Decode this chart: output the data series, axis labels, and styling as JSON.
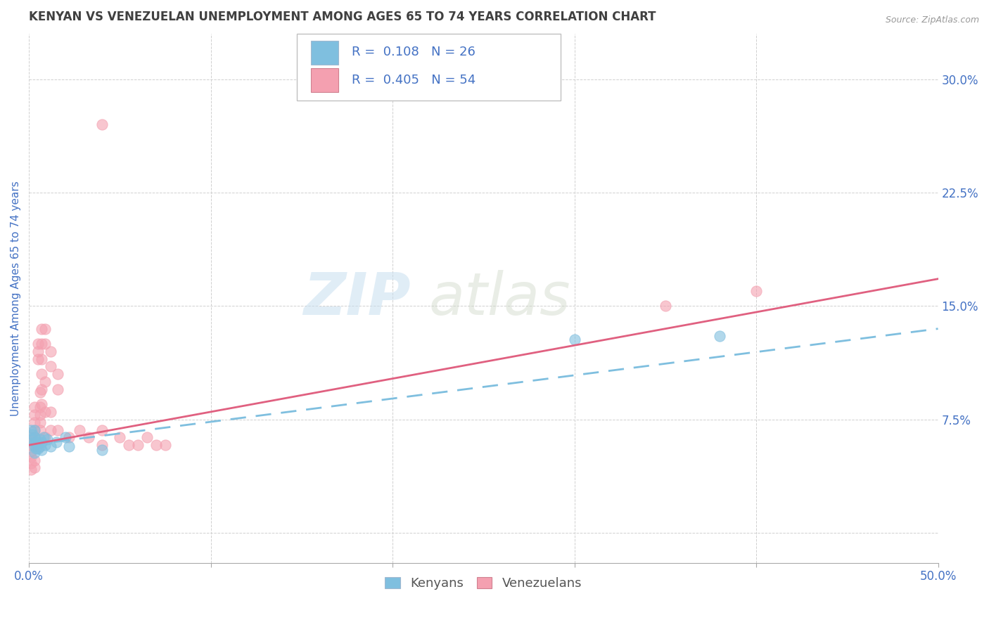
{
  "title": "KENYAN VS VENEZUELAN UNEMPLOYMENT AMONG AGES 65 TO 74 YEARS CORRELATION CHART",
  "source_text": "Source: ZipAtlas.com",
  "ylabel": "Unemployment Among Ages 65 to 74 years",
  "xlim": [
    0.0,
    0.5
  ],
  "ylim": [
    -0.02,
    0.33
  ],
  "xticks": [
    0.0,
    0.1,
    0.2,
    0.3,
    0.4,
    0.5
  ],
  "xticklabels_show": [
    "0.0%",
    "50.0%"
  ],
  "xticklabels_show_pos": [
    0.0,
    0.5
  ],
  "yticks": [
    0.0,
    0.075,
    0.15,
    0.225,
    0.3
  ],
  "yticklabels": [
    "",
    "7.5%",
    "15.0%",
    "22.5%",
    "30.0%"
  ],
  "legend_entries": [
    {
      "label": "R =  0.108   N = 26",
      "color": "#a8c4e0"
    },
    {
      "label": "R =  0.405   N = 54",
      "color": "#f4a0b0"
    }
  ],
  "watermark_zip": "ZIP",
  "watermark_atlas": "atlas",
  "background_color": "#ffffff",
  "grid_color": "#d0d0d0",
  "axis_color": "#4472c4",
  "title_color": "#404040",
  "kenyan_color": "#7fbfdf",
  "kenyan_edge_color": "#5090c0",
  "venezuelan_color": "#f4a0b0",
  "venezuelan_edge_color": "#d06080",
  "kenyan_scatter": [
    [
      0.001,
      0.068
    ],
    [
      0.002,
      0.065
    ],
    [
      0.002,
      0.062
    ],
    [
      0.003,
      0.068
    ],
    [
      0.003,
      0.063
    ],
    [
      0.003,
      0.06
    ],
    [
      0.003,
      0.057
    ],
    [
      0.003,
      0.053
    ],
    [
      0.004,
      0.06
    ],
    [
      0.004,
      0.056
    ],
    [
      0.005,
      0.06
    ],
    [
      0.005,
      0.056
    ],
    [
      0.006,
      0.062
    ],
    [
      0.006,
      0.057
    ],
    [
      0.007,
      0.06
    ],
    [
      0.007,
      0.055
    ],
    [
      0.008,
      0.063
    ],
    [
      0.009,
      0.058
    ],
    [
      0.01,
      0.062
    ],
    [
      0.012,
      0.057
    ],
    [
      0.015,
      0.06
    ],
    [
      0.02,
      0.063
    ],
    [
      0.022,
      0.057
    ],
    [
      0.04,
      0.055
    ],
    [
      0.3,
      0.128
    ],
    [
      0.38,
      0.13
    ]
  ],
  "venezuelan_scatter": [
    [
      0.001,
      0.063
    ],
    [
      0.001,
      0.058
    ],
    [
      0.001,
      0.054
    ],
    [
      0.001,
      0.05
    ],
    [
      0.001,
      0.046
    ],
    [
      0.001,
      0.042
    ],
    [
      0.003,
      0.083
    ],
    [
      0.003,
      0.078
    ],
    [
      0.003,
      0.073
    ],
    [
      0.003,
      0.068
    ],
    [
      0.003,
      0.063
    ],
    [
      0.003,
      0.058
    ],
    [
      0.003,
      0.048
    ],
    [
      0.003,
      0.043
    ],
    [
      0.005,
      0.125
    ],
    [
      0.005,
      0.12
    ],
    [
      0.005,
      0.115
    ],
    [
      0.006,
      0.093
    ],
    [
      0.006,
      0.083
    ],
    [
      0.006,
      0.078
    ],
    [
      0.006,
      0.073
    ],
    [
      0.006,
      0.068
    ],
    [
      0.007,
      0.135
    ],
    [
      0.007,
      0.125
    ],
    [
      0.007,
      0.115
    ],
    [
      0.007,
      0.105
    ],
    [
      0.007,
      0.095
    ],
    [
      0.007,
      0.085
    ],
    [
      0.009,
      0.135
    ],
    [
      0.009,
      0.125
    ],
    [
      0.009,
      0.1
    ],
    [
      0.009,
      0.08
    ],
    [
      0.009,
      0.063
    ],
    [
      0.012,
      0.12
    ],
    [
      0.012,
      0.11
    ],
    [
      0.012,
      0.08
    ],
    [
      0.012,
      0.068
    ],
    [
      0.016,
      0.105
    ],
    [
      0.016,
      0.095
    ],
    [
      0.016,
      0.068
    ],
    [
      0.022,
      0.063
    ],
    [
      0.028,
      0.068
    ],
    [
      0.033,
      0.063
    ],
    [
      0.04,
      0.068
    ],
    [
      0.04,
      0.058
    ],
    [
      0.04,
      0.27
    ],
    [
      0.05,
      0.063
    ],
    [
      0.055,
      0.058
    ],
    [
      0.06,
      0.058
    ],
    [
      0.065,
      0.063
    ],
    [
      0.07,
      0.058
    ],
    [
      0.075,
      0.058
    ],
    [
      0.35,
      0.15
    ],
    [
      0.4,
      0.16
    ]
  ],
  "kenyan_line": [
    [
      0.0,
      0.058
    ],
    [
      0.5,
      0.135
    ]
  ],
  "venezuelan_line": [
    [
      0.0,
      0.058
    ],
    [
      0.5,
      0.168
    ]
  ],
  "kenyan_line_color": "#7fbfdf",
  "venezuelan_line_color": "#e06080",
  "title_fontsize": 12,
  "axis_label_fontsize": 11,
  "tick_fontsize": 12,
  "scatter_size": 120,
  "scatter_alpha": 0.6,
  "bottom_legend_labels": [
    "Kenyans",
    "Venezuelans"
  ]
}
